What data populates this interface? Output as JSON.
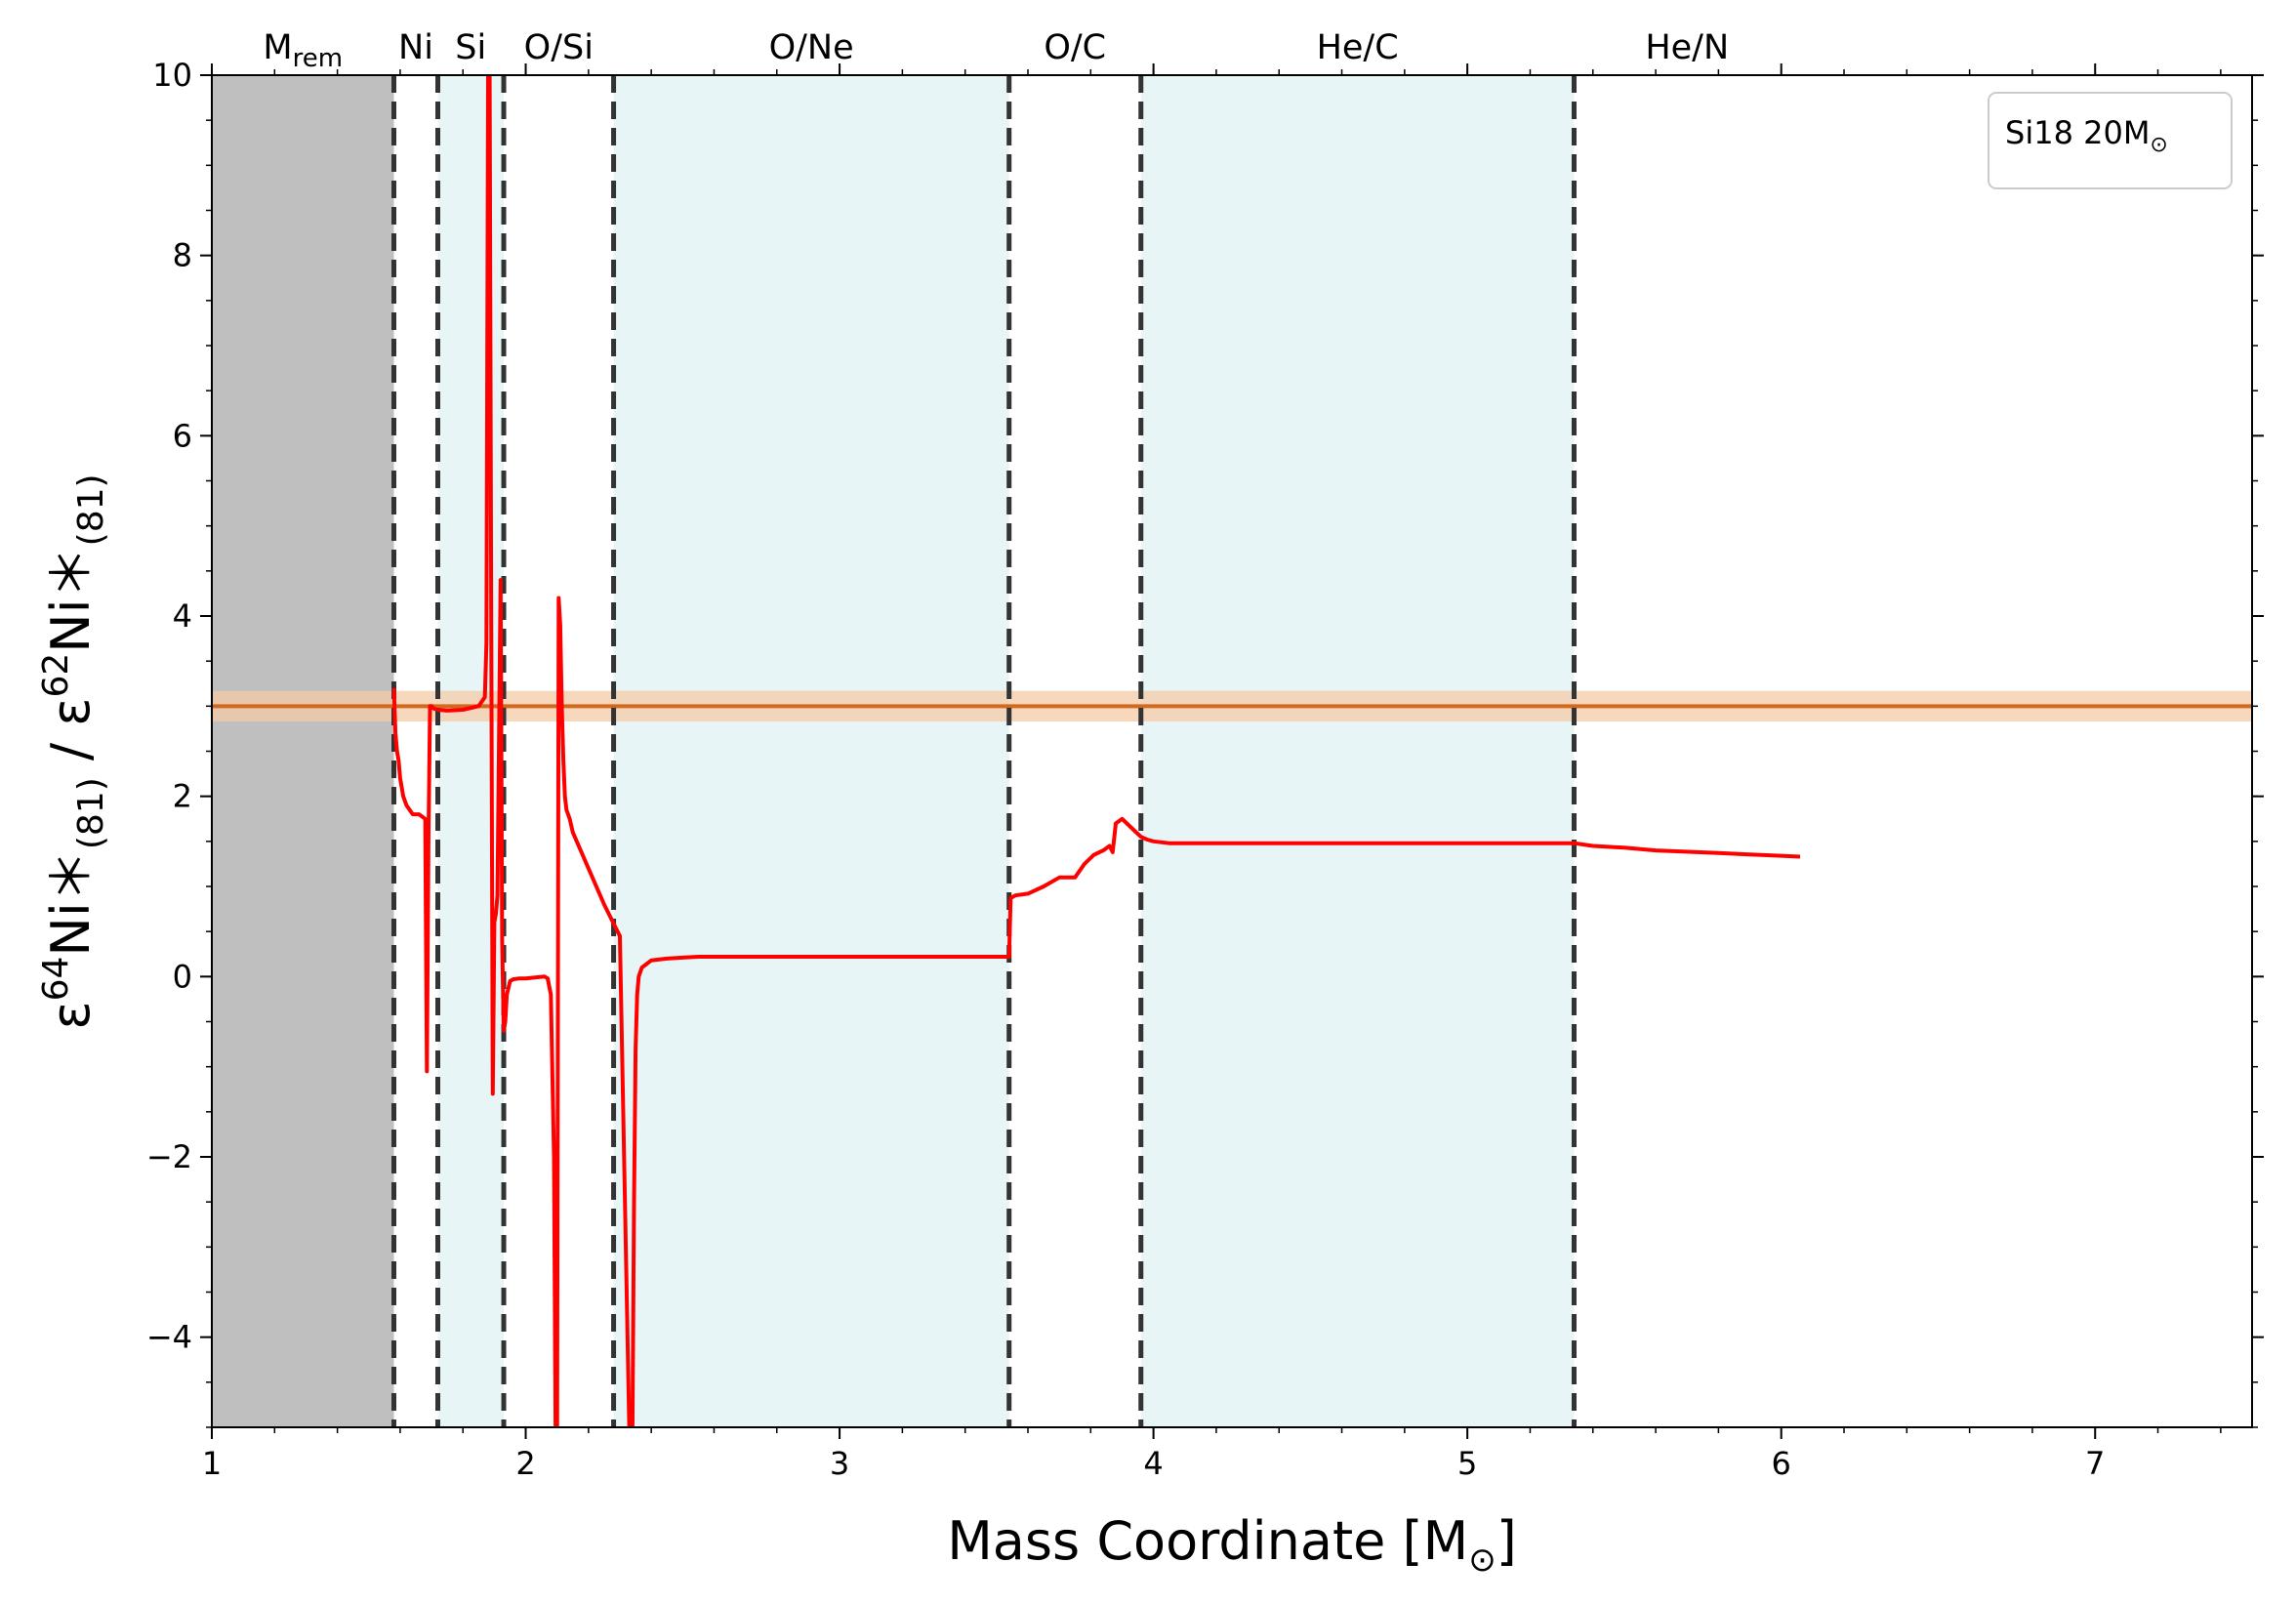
{
  "chart_data": {
    "type": "line",
    "xlabel": "Mass Coordinate [M",
    "xlabel_suffix": "]",
    "ylabel_parts": [
      "ε",
      "64",
      "Ni＊",
      "(81)",
      " / ε",
      "62",
      "Ni＊",
      "(81)"
    ],
    "xlim": [
      1.0,
      7.5
    ],
    "ylim": [
      -5,
      10
    ],
    "x_ticks": [
      1,
      2,
      3,
      4,
      5,
      6,
      7
    ],
    "x_tick_labels": [
      "1",
      "2",
      "3",
      "4",
      "5",
      "6",
      "7"
    ],
    "y_ticks": [
      -4,
      -2,
      0,
      2,
      4,
      6,
      8,
      10
    ],
    "y_tick_labels": [
      "−4",
      "−2",
      "0",
      "2",
      "4",
      "6",
      "8",
      "10"
    ],
    "legend": {
      "label": "Si18 20M",
      "placement": "top-right"
    },
    "remnant": {
      "x_range": [
        1.0,
        1.58
      ],
      "color": "#bfbfbf"
    },
    "boundaries": [
      1.58,
      1.72,
      1.93,
      2.28,
      3.54,
      3.96,
      5.34
    ],
    "shaded_zones": [
      [
        1.72,
        1.93
      ],
      [
        2.28,
        3.54
      ],
      [
        3.96,
        5.34
      ]
    ],
    "shade_color": "#e8f5f6",
    "zone_labels": [
      {
        "text": "M",
        "sub": "rem",
        "x": 1.29
      },
      {
        "text": "Ni",
        "sub": "",
        "x": 1.65
      },
      {
        "text": "Si",
        "sub": "",
        "x": 1.825
      },
      {
        "text": "O/Si",
        "sub": "",
        "x": 2.105
      },
      {
        "text": "O/Ne",
        "sub": "",
        "x": 2.91
      },
      {
        "text": "O/C",
        "sub": "",
        "x": 3.75
      },
      {
        "text": "He/C",
        "sub": "",
        "x": 4.65
      },
      {
        "text": "He/N",
        "sub": "",
        "x": 5.7
      }
    ],
    "reference": {
      "value": 3.0,
      "band": [
        2.83,
        3.17
      ],
      "color": "#d2691e",
      "band_color": "#f5cba7"
    },
    "series": [
      {
        "color": "#ff0000",
        "x": [
          1.58,
          1.585,
          1.59,
          1.595,
          1.6,
          1.61,
          1.62,
          1.64,
          1.66,
          1.68,
          1.685,
          1.69,
          1.695,
          1.7,
          1.705,
          1.71,
          1.72,
          1.75,
          1.8,
          1.85,
          1.87,
          1.875,
          1.88,
          1.885,
          1.89,
          1.895,
          1.9,
          1.905,
          1.91,
          1.92,
          1.925,
          1.93,
          1.935,
          1.94,
          1.95,
          1.96,
          1.98,
          2.0,
          2.03,
          2.06,
          2.07,
          2.08,
          2.09,
          2.095,
          2.1,
          2.105,
          2.11,
          2.115,
          2.12,
          2.125,
          2.13,
          2.14,
          2.15,
          2.2,
          2.25,
          2.3,
          2.33,
          2.34,
          2.345,
          2.35,
          2.355,
          2.36,
          2.37,
          2.4,
          2.45,
          2.5,
          2.55,
          2.6,
          2.7,
          3.0,
          3.3,
          3.54,
          3.545,
          3.56,
          3.6,
          3.65,
          3.7,
          3.72,
          3.75,
          3.78,
          3.81,
          3.84,
          3.86,
          3.87,
          3.88,
          3.9,
          3.93,
          3.96,
          3.98,
          4.0,
          4.05,
          4.2,
          4.5,
          5.0,
          5.34,
          5.4,
          5.5,
          5.6,
          5.8,
          6.0,
          6.06
        ],
        "y": [
          3.2,
          2.7,
          2.5,
          2.4,
          2.2,
          2.0,
          1.9,
          1.8,
          1.8,
          1.75,
          -1.05,
          1.5,
          3.0,
          3.0,
          2.98,
          2.97,
          2.96,
          2.95,
          2.96,
          3.0,
          3.1,
          3.7,
          10.0,
          10.0,
          4.0,
          -1.3,
          0.6,
          0.7,
          0.9,
          4.4,
          0.4,
          -0.6,
          -0.5,
          -0.2,
          -0.05,
          -0.03,
          -0.02,
          -0.02,
          -0.01,
          0.0,
          -0.02,
          -0.2,
          -2.0,
          -5.0,
          -5.0,
          4.2,
          3.9,
          3.0,
          2.4,
          2.0,
          1.85,
          1.75,
          1.6,
          1.2,
          0.8,
          0.45,
          -5.0,
          -5.0,
          -2.5,
          -0.8,
          -0.2,
          0.0,
          0.1,
          0.18,
          0.2,
          0.21,
          0.22,
          0.22,
          0.22,
          0.22,
          0.22,
          0.22,
          0.87,
          0.9,
          0.92,
          1.0,
          1.1,
          1.1,
          1.1,
          1.25,
          1.35,
          1.4,
          1.45,
          1.38,
          1.7,
          1.75,
          1.65,
          1.55,
          1.52,
          1.5,
          1.48,
          1.48,
          1.48,
          1.48,
          1.48,
          1.45,
          1.43,
          1.4,
          1.37,
          1.34,
          1.33
        ]
      }
    ]
  }
}
